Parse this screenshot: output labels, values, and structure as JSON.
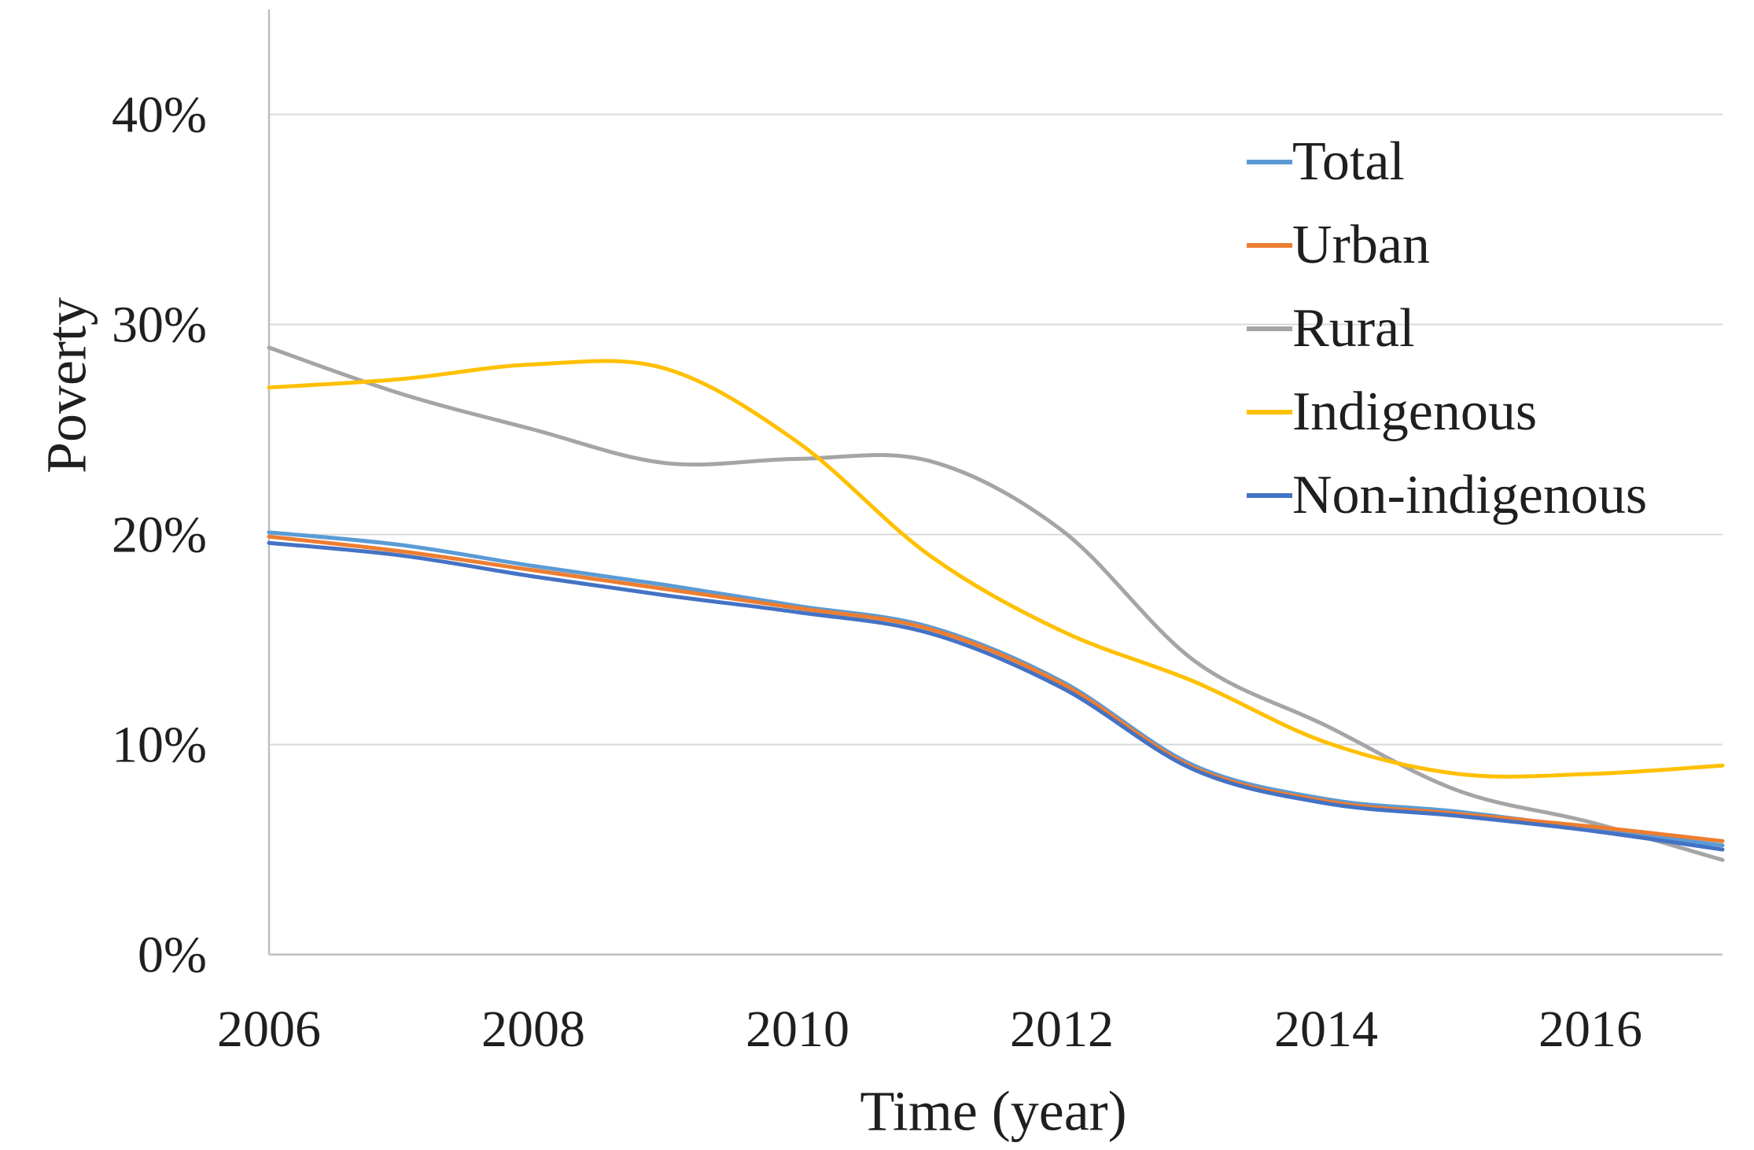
{
  "chart_data": {
    "type": "line",
    "smooth": true,
    "xlabel": "Time (year)",
    "ylabel": "Poverty",
    "xlim": [
      2006,
      2017
    ],
    "ylim": [
      0,
      45
    ],
    "grid": "horizontal-major-10pct",
    "legend_position": "upper-right-vertical",
    "x": [
      2006,
      2007,
      2008,
      2009,
      2010,
      2011,
      2012,
      2013,
      2014,
      2015,
      2016,
      2017
    ],
    "x_ticks": [
      {
        "year": 2006,
        "label": "2006"
      },
      {
        "year": 2008,
        "label": "2008"
      },
      {
        "year": 2010,
        "label": "2010"
      },
      {
        "year": 2012,
        "label": "2012"
      },
      {
        "year": 2014,
        "label": "2014"
      },
      {
        "year": 2016,
        "label": "2016"
      }
    ],
    "y_ticks": [
      {
        "value": 0,
        "label": "0%"
      },
      {
        "value": 10,
        "label": "10%"
      },
      {
        "value": 20,
        "label": "20%"
      },
      {
        "value": 30,
        "label": "30%"
      },
      {
        "value": 40,
        "label": "40%"
      }
    ],
    "series": [
      {
        "name": "Total",
        "color": "#5B9BD5",
        "values": [
          20.1,
          19.5,
          18.5,
          17.6,
          16.6,
          15.6,
          13.0,
          9.0,
          7.4,
          6.8,
          6.0,
          5.2
        ]
      },
      {
        "name": "Urban",
        "color": "#ED7D31",
        "values": [
          19.9,
          19.2,
          18.3,
          17.4,
          16.5,
          15.5,
          12.9,
          8.9,
          7.3,
          6.7,
          6.1,
          5.4
        ]
      },
      {
        "name": "Rural",
        "color": "#A5A5A5",
        "values": [
          28.9,
          26.7,
          25.0,
          23.4,
          23.6,
          23.5,
          20.2,
          14.0,
          10.9,
          7.8,
          6.3,
          4.5
        ]
      },
      {
        "name": "Indigenous",
        "color": "#FFC000",
        "values": [
          27.0,
          27.4,
          28.1,
          27.9,
          24.4,
          19.0,
          15.4,
          13.0,
          10.1,
          8.6,
          8.6,
          9.0
        ]
      },
      {
        "name": "Non-indigenous",
        "color": "#4472C4",
        "values": [
          19.6,
          19.0,
          18.0,
          17.1,
          16.3,
          15.3,
          12.7,
          8.8,
          7.2,
          6.6,
          5.9,
          5.0
        ]
      }
    ],
    "draw_order": [
      "Rural",
      "Indigenous",
      "Total",
      "Urban",
      "Non-indigenous"
    ],
    "gridline_color": "#D9D9D9",
    "axis_color": "#BFBFBF",
    "text_color": "#1f1f1f"
  }
}
